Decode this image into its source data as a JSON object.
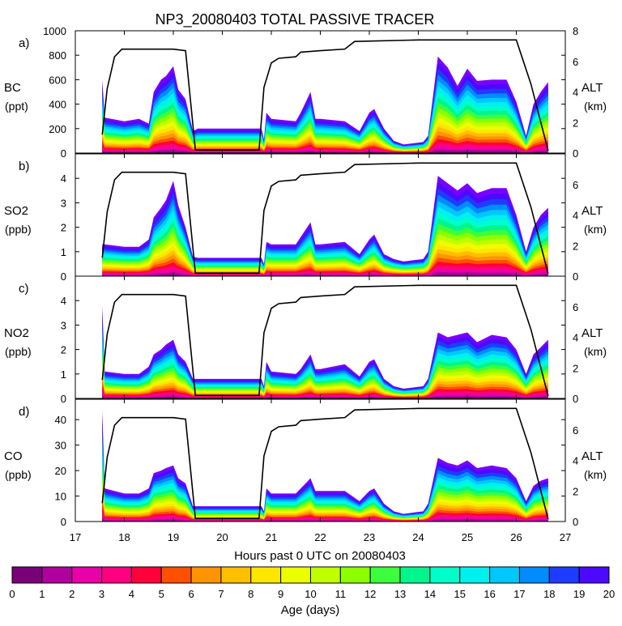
{
  "title": "NP3_20080403 TOTAL PASSIVE TRACER",
  "colors": [
    "#7a007a",
    "#b0009e",
    "#e800a8",
    "#ff0080",
    "#ff003c",
    "#ff5000",
    "#ff9400",
    "#ffbe00",
    "#ffe600",
    "#ecff00",
    "#bfff00",
    "#8cff00",
    "#3cff3c",
    "#00f58c",
    "#00ffc8",
    "#00f0f0",
    "#00c8ff",
    "#008cff",
    "#1e3cff",
    "#4b0aff",
    "#7800ff"
  ],
  "chart_data": {
    "type": "area",
    "description": "Stacked age-spectrum tracer concentrations along flight track with altitude overlay",
    "xlabel": "Hours past 0 UTC on 20080403",
    "xlim": [
      17,
      27
    ],
    "xticks": [
      "17",
      "18",
      "19",
      "20",
      "21",
      "22",
      "23",
      "24",
      "25",
      "26",
      "27"
    ],
    "altitude": {
      "label_top": "ALT",
      "label_bottom": "(km)",
      "ylim": [
        0,
        8
      ],
      "x": [
        17.55,
        17.65,
        17.8,
        17.95,
        18.5,
        19.0,
        19.25,
        19.45,
        20.75,
        20.85,
        21.0,
        21.15,
        21.5,
        21.6,
        22.0,
        22.5,
        22.7,
        24.0,
        26.0,
        26.3,
        26.65
      ],
      "y": [
        1.2,
        4.2,
        6.3,
        6.8,
        6.8,
        6.8,
        6.7,
        0.2,
        0.2,
        4.3,
        5.9,
        6.2,
        6.3,
        6.6,
        6.7,
        6.8,
        7.3,
        7.4,
        7.4,
        4.5,
        0.15
      ]
    },
    "age_colorbar": {
      "label": "Age (days)",
      "ticks": [
        "0",
        "1",
        "2",
        "3",
        "4",
        "5",
        "6",
        "7",
        "8",
        "9",
        "10",
        "11",
        "12",
        "13",
        "14",
        "15",
        "16",
        "17",
        "18",
        "19",
        "20"
      ]
    },
    "panels": [
      {
        "tag": "a)",
        "species": "BC",
        "unit": "(ppt)",
        "ylim": [
          0,
          1000
        ],
        "yticks": [
          "0",
          "200",
          "400",
          "600",
          "800",
          "1000"
        ],
        "x": [
          17.55,
          17.6,
          18.0,
          18.3,
          18.5,
          18.6,
          18.75,
          18.85,
          19.0,
          19.1,
          19.25,
          19.4,
          19.5,
          20.8,
          20.85,
          20.9,
          21.0,
          21.5,
          21.6,
          21.8,
          21.9,
          22.0,
          22.5,
          22.8,
          23.0,
          23.1,
          23.3,
          23.5,
          23.7,
          24.1,
          24.2,
          24.4,
          24.6,
          24.8,
          25.0,
          25.2,
          25.5,
          25.8,
          26.0,
          26.2,
          26.35,
          26.5,
          26.65
        ],
        "total": [
          600,
          290,
          260,
          280,
          240,
          500,
          600,
          630,
          710,
          520,
          440,
          180,
          200,
          200,
          110,
          330,
          280,
          260,
          330,
          500,
          280,
          280,
          260,
          180,
          330,
          360,
          200,
          100,
          70,
          90,
          140,
          790,
          700,
          550,
          690,
          590,
          600,
          600,
          420,
          140,
          400,
          500,
          580
        ]
      },
      {
        "tag": "b)",
        "species": "SO2",
        "unit": "(ppb)",
        "ylim": [
          0,
          5
        ],
        "yticks": [
          "0",
          "1",
          "2",
          "3",
          "4"
        ],
        "x": [
          17.55,
          17.6,
          18.0,
          18.3,
          18.5,
          18.6,
          18.75,
          18.85,
          19.0,
          19.1,
          19.25,
          19.4,
          19.5,
          20.8,
          20.85,
          20.9,
          21.0,
          21.5,
          21.6,
          21.8,
          21.9,
          22.0,
          22.5,
          22.8,
          23.0,
          23.1,
          23.3,
          23.5,
          23.7,
          24.1,
          24.2,
          24.4,
          24.6,
          24.8,
          25.0,
          25.2,
          25.5,
          25.8,
          26.0,
          26.2,
          26.35,
          26.5,
          26.65
        ],
        "total": [
          1.3,
          1.3,
          1.2,
          1.2,
          1.5,
          2.4,
          2.8,
          3.1,
          3.9,
          2.9,
          2.0,
          0.8,
          0.75,
          0.75,
          0.5,
          1.4,
          1.3,
          1.3,
          1.6,
          2.2,
          1.3,
          1.3,
          1.4,
          0.9,
          1.5,
          1.7,
          0.9,
          0.7,
          0.6,
          0.7,
          1.0,
          4.1,
          3.8,
          3.5,
          3.8,
          3.4,
          3.6,
          3.6,
          2.5,
          1.0,
          2.0,
          2.5,
          2.8
        ]
      },
      {
        "tag": "c)",
        "species": "NO2",
        "unit": "(ppb)",
        "ylim": [
          0,
          5
        ],
        "yticks": [
          "0",
          "1",
          "2",
          "3",
          "4"
        ],
        "x": [
          17.55,
          17.6,
          18.0,
          18.3,
          18.5,
          18.6,
          18.75,
          18.85,
          19.0,
          19.1,
          19.25,
          19.4,
          19.5,
          20.8,
          20.85,
          20.9,
          21.0,
          21.5,
          21.6,
          21.8,
          21.9,
          22.0,
          22.5,
          22.8,
          23.0,
          23.1,
          23.3,
          23.5,
          23.7,
          24.1,
          24.2,
          24.4,
          24.6,
          24.8,
          25.0,
          25.2,
          25.5,
          25.8,
          26.0,
          26.2,
          26.35,
          26.5,
          26.65
        ],
        "total": [
          3.8,
          1.1,
          1.0,
          1.0,
          1.3,
          1.8,
          2.0,
          2.2,
          2.4,
          1.8,
          1.5,
          0.8,
          0.8,
          0.8,
          0.5,
          1.5,
          1.1,
          1.0,
          1.2,
          1.8,
          1.2,
          1.2,
          1.4,
          0.9,
          1.5,
          1.6,
          0.8,
          0.5,
          0.4,
          0.5,
          0.8,
          2.7,
          2.5,
          2.6,
          2.7,
          2.3,
          2.6,
          2.5,
          2.0,
          1.0,
          1.8,
          2.1,
          2.4
        ]
      },
      {
        "tag": "d)",
        "species": "CO",
        "unit": "(ppb)",
        "ylim": [
          0,
          48
        ],
        "yticks": [
          "0",
          "10",
          "20",
          "30",
          "40"
        ],
        "x": [
          17.55,
          17.6,
          18.0,
          18.3,
          18.5,
          18.6,
          18.75,
          18.85,
          19.0,
          19.1,
          19.25,
          19.4,
          19.5,
          20.8,
          20.85,
          20.9,
          21.0,
          21.5,
          21.6,
          21.8,
          21.9,
          22.0,
          22.5,
          22.8,
          23.0,
          23.1,
          23.3,
          23.5,
          23.7,
          24.1,
          24.2,
          24.4,
          24.6,
          24.8,
          25.0,
          25.2,
          25.5,
          25.8,
          26.0,
          26.2,
          26.35,
          26.5,
          26.65
        ],
        "total": [
          44,
          13,
          11,
          11,
          13,
          19,
          20,
          21,
          22,
          17,
          15,
          6,
          6,
          6,
          4,
          13,
          11,
          11,
          13,
          17,
          12,
          12,
          12,
          8,
          12,
          13,
          7,
          4,
          3,
          4,
          7,
          25,
          23,
          22,
          24,
          21,
          22,
          21,
          17,
          8,
          14,
          16,
          17
        ]
      }
    ]
  }
}
